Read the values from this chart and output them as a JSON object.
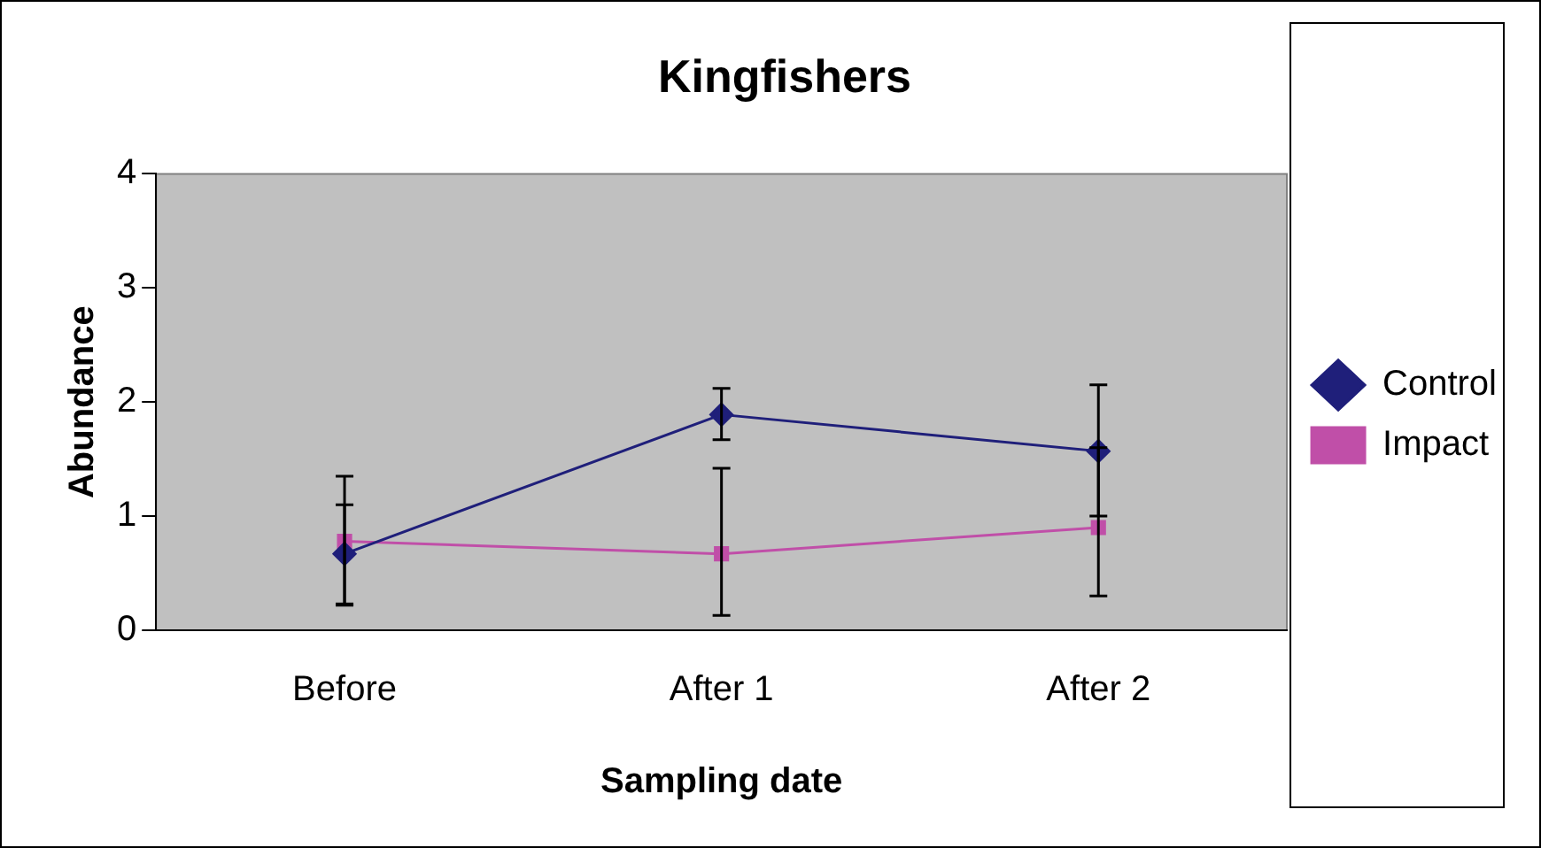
{
  "chart_data": {
    "type": "line",
    "title": "Kingfishers",
    "xlabel": "Sampling date",
    "ylabel": "Abundance",
    "categories": [
      "Before",
      "After 1",
      "After 2"
    ],
    "series": [
      {
        "name": "Control",
        "color": "#1f1f7a",
        "values": [
          0.67,
          1.89,
          1.57
        ],
        "errors": [
          [
            0.23,
            1.1
          ],
          [
            1.67,
            2.12
          ],
          [
            1.0,
            2.15
          ]
        ]
      },
      {
        "name": "Impact",
        "color": "#c04fa8",
        "values": [
          0.78,
          0.67,
          0.9
        ],
        "errors": [
          [
            0.22,
            1.35
          ],
          [
            0.13,
            1.42
          ],
          [
            0.3,
            1.6
          ]
        ]
      }
    ],
    "marker": [
      "diamond",
      "square"
    ],
    "ylim": [
      0,
      4
    ],
    "yticks": [
      0,
      1,
      2,
      3,
      4
    ],
    "grid": false,
    "legend": "right",
    "line_style": "solid"
  }
}
